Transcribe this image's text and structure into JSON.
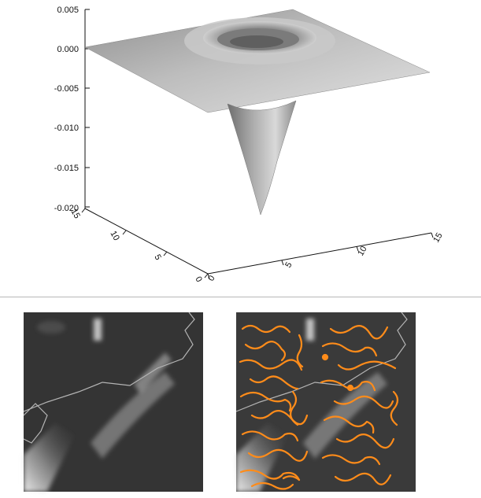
{
  "surface_plot": {
    "z_ticks": [
      "0.005",
      "0.000",
      "-0.005",
      "-0.010",
      "-0.015",
      "-0.020"
    ],
    "y_ticks": [
      "0",
      "5",
      "10",
      "15"
    ],
    "x_ticks": [
      "0",
      "5",
      "10",
      "15"
    ],
    "surface_color": "#9a9a9a"
  },
  "images": {
    "left": {
      "description_icon": "satellite-grayscale-image"
    },
    "right": {
      "description_icon": "satellite-with-contours-image",
      "contour_color": "#ff8c1a"
    }
  }
}
